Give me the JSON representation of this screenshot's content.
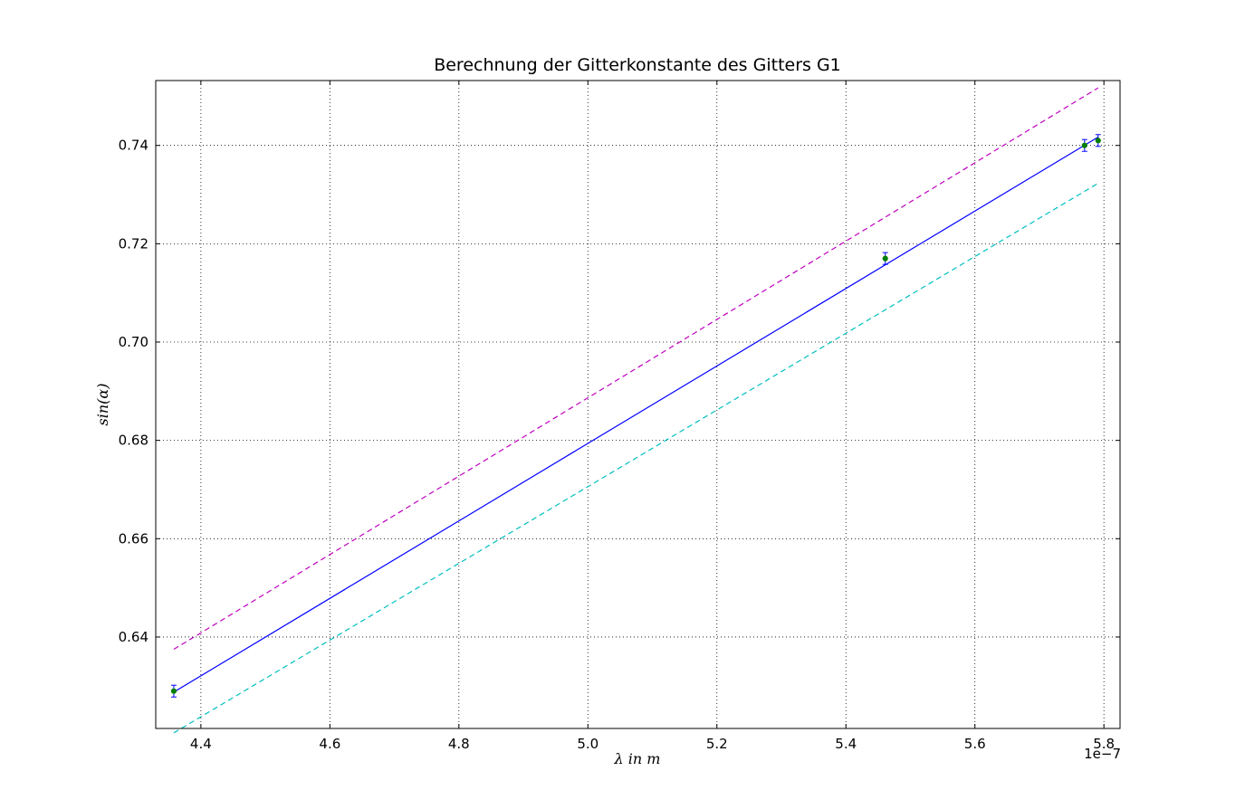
{
  "chart_data": {
    "type": "line",
    "title": "Berechnung der Gitterkonstante des Gitters G1",
    "xlabel": "λ in m",
    "ylabel": "sin(α)",
    "x_offset_label": "1e−7",
    "xlim": [
      4.33,
      5.825
    ],
    "ylim": [
      0.6214,
      0.7532
    ],
    "x_ticks": [
      4.4,
      4.6,
      4.8,
      5.0,
      5.2,
      5.4,
      5.6,
      5.8
    ],
    "x_tick_labels": [
      "4.4",
      "4.6",
      "4.8",
      "5.0",
      "5.2",
      "5.4",
      "5.6",
      "5.8"
    ],
    "y_ticks": [
      0.64,
      0.66,
      0.68,
      0.7,
      0.72,
      0.74
    ],
    "y_tick_labels": [
      "0.64",
      "0.66",
      "0.68",
      "0.70",
      "0.72",
      "0.74"
    ],
    "grid": true,
    "series": [
      {
        "kind": "errorbar",
        "color": "#007f00",
        "points": [
          {
            "x": 4.358,
            "y": 0.629,
            "err": 0.0012
          },
          {
            "x": 5.461,
            "y": 0.717,
            "err": 0.0012
          },
          {
            "x": 5.77,
            "y": 0.74,
            "err": 0.0012
          },
          {
            "x": 5.791,
            "y": 0.741,
            "err": 0.0012
          }
        ]
      },
      {
        "kind": "line",
        "color": "#0000ff",
        "dash": "solid",
        "x": [
          4.358,
          5.791
        ],
        "y": [
          0.6288,
          0.7417
        ]
      },
      {
        "kind": "line",
        "color": "#bf00bf",
        "dash": "dashed",
        "x": [
          4.358,
          5.791
        ],
        "y": [
          0.6375,
          0.7517
        ]
      },
      {
        "kind": "line",
        "color": "#00bfbf",
        "dash": "dashed",
        "x": [
          4.358,
          5.791
        ],
        "y": [
          0.6205,
          0.7323
        ]
      }
    ]
  }
}
